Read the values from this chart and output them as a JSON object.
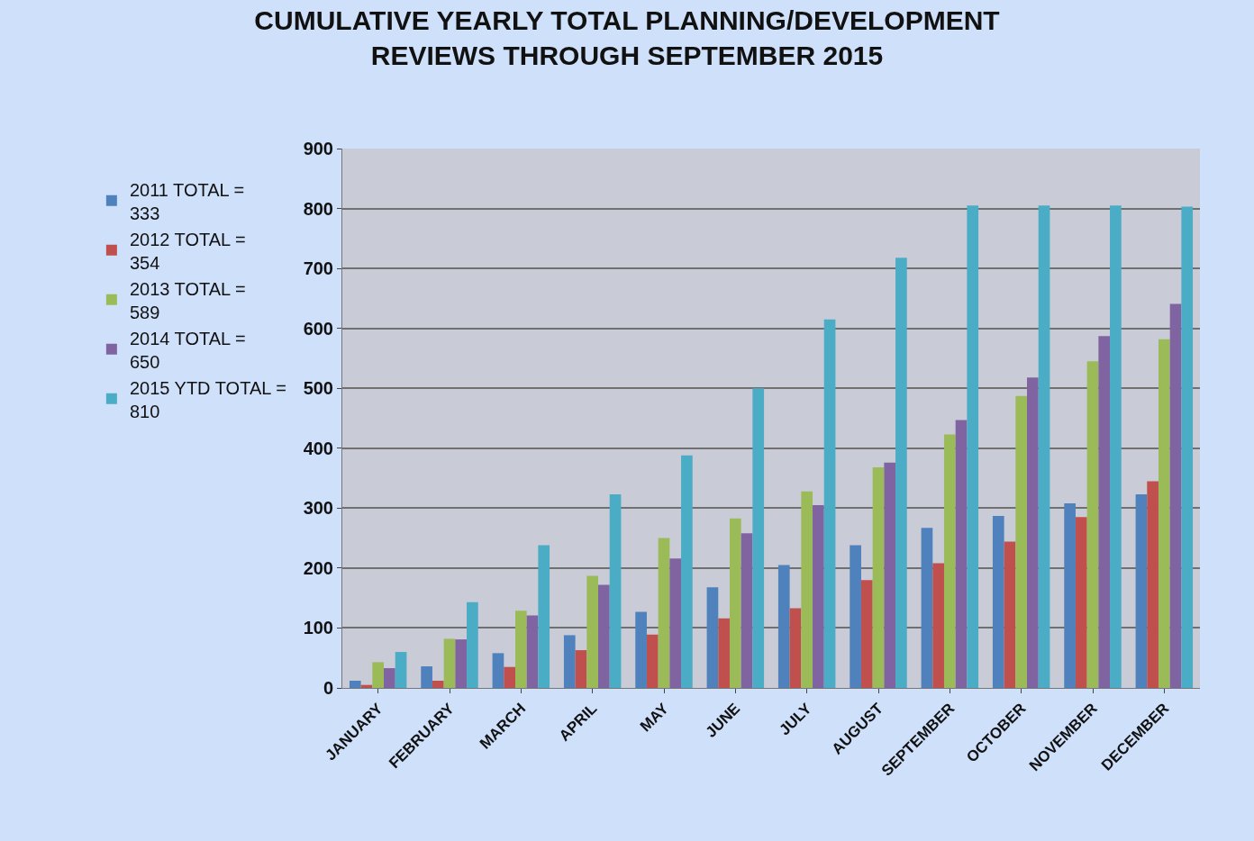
{
  "chart_data": {
    "type": "bar",
    "title": "CUMULATIVE YEARLY TOTAL PLANNING/DEVELOPMENT\nREVIEWS THROUGH SEPTEMBER 2015",
    "categories": [
      "JANUARY",
      "FEBRUARY",
      "MARCH",
      "APRIL",
      "MAY",
      "JUNE",
      "JULY",
      "AUGUST",
      "SEPTEMBER",
      "OCTOBER",
      "NOVEMBER",
      "DECEMBER"
    ],
    "series": [
      {
        "name": "2011 TOTAL = 333",
        "color": "#4f81bd",
        "values": [
          12,
          36,
          58,
          88,
          127,
          168,
          205,
          238,
          267,
          287,
          308,
          323
        ]
      },
      {
        "name": "2012 TOTAL = 354",
        "color": "#c0504d",
        "values": [
          5,
          12,
          35,
          63,
          89,
          116,
          133,
          180,
          208,
          244,
          285,
          345
        ]
      },
      {
        "name": "2013 TOTAL = 589",
        "color": "#9bbb59",
        "values": [
          43,
          82,
          129,
          187,
          250,
          283,
          328,
          368,
          423,
          487,
          545,
          582
        ]
      },
      {
        "name": "2014 TOTAL = 650",
        "color": "#8064a2",
        "values": [
          33,
          81,
          121,
          172,
          216,
          258,
          305,
          376,
          447,
          518,
          587,
          641
        ]
      },
      {
        "name": "2015 YTD TOTAL = 810",
        "color": "#4bacc6",
        "values": [
          60,
          143,
          238,
          323,
          388,
          500,
          615,
          718,
          805,
          805,
          805,
          803
        ]
      }
    ],
    "ylim": [
      0,
      900
    ],
    "yticks": [
      0,
      100,
      200,
      300,
      400,
      500,
      600,
      700,
      800,
      900
    ],
    "grid": "y",
    "legend": "left"
  }
}
